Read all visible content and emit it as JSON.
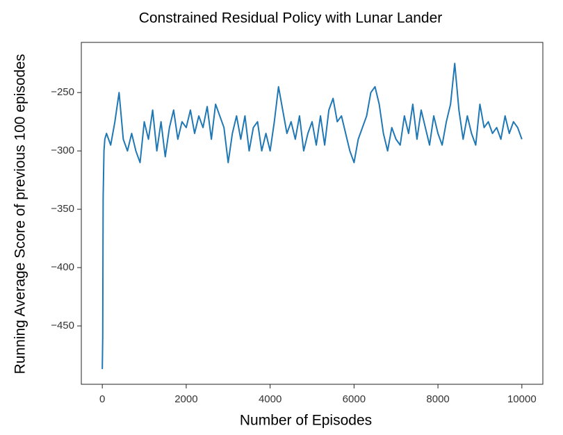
{
  "chart_data": {
    "type": "line",
    "title": "Constrained Residual Policy with Lunar Lander",
    "x_label": "Number of Episodes",
    "y_label": "Running Average Score of previous 100 episodes",
    "xlim": [
      -500,
      10500
    ],
    "ylim": [
      -500,
      -207
    ],
    "xticks": [
      0,
      2000,
      4000,
      6000,
      8000,
      10000
    ],
    "yticks": [
      {
        "value": -450,
        "label": "−450"
      },
      {
        "value": -400,
        "label": "−400"
      },
      {
        "value": -350,
        "label": "−350"
      },
      {
        "value": -300,
        "label": "−300"
      },
      {
        "value": -250,
        "label": "−250"
      }
    ],
    "grid": false,
    "x": [
      0,
      10,
      20,
      40,
      60,
      100,
      200,
      300,
      400,
      500,
      600,
      700,
      800,
      900,
      1000,
      1100,
      1200,
      1300,
      1400,
      1500,
      1600,
      1700,
      1800,
      1900,
      2000,
      2100,
      2200,
      2300,
      2400,
      2500,
      2600,
      2700,
      2800,
      2900,
      3000,
      3100,
      3200,
      3300,
      3400,
      3500,
      3600,
      3700,
      3800,
      3900,
      4000,
      4100,
      4200,
      4300,
      4400,
      4500,
      4600,
      4700,
      4800,
      4900,
      5000,
      5100,
      5200,
      5300,
      5400,
      5500,
      5600,
      5700,
      5800,
      5900,
      6000,
      6100,
      6200,
      6300,
      6400,
      6500,
      6600,
      6700,
      6800,
      6900,
      7000,
      7100,
      7200,
      7300,
      7400,
      7500,
      7600,
      7700,
      7800,
      7900,
      8000,
      8100,
      8200,
      8300,
      8400,
      8500,
      8600,
      8700,
      8800,
      8900,
      9000,
      9100,
      9200,
      9300,
      9400,
      9500,
      9600,
      9700,
      9800,
      9900,
      10000
    ],
    "series": [
      {
        "name": "Running average",
        "color": "#1f77b4",
        "values": [
          -487,
          -460,
          -340,
          -300,
          -290,
          -285,
          -295,
          -275,
          -250,
          -290,
          -300,
          -285,
          -300,
          -310,
          -275,
          -290,
          -265,
          -300,
          -275,
          -305,
          -280,
          -265,
          -290,
          -275,
          -280,
          -265,
          -285,
          -270,
          -280,
          -262,
          -290,
          -260,
          -270,
          -280,
          -310,
          -285,
          -270,
          -290,
          -270,
          -300,
          -280,
          -275,
          -300,
          -285,
          -300,
          -275,
          -245,
          -265,
          -285,
          -275,
          -290,
          -270,
          -300,
          -285,
          -275,
          -295,
          -270,
          -295,
          -265,
          -255,
          -275,
          -270,
          -285,
          -300,
          -310,
          -290,
          -280,
          -270,
          -250,
          -245,
          -260,
          -285,
          -300,
          -280,
          -290,
          -295,
          -270,
          -285,
          -260,
          -290,
          -265,
          -280,
          -295,
          -270,
          -285,
          -295,
          -275,
          -260,
          -225,
          -265,
          -290,
          -270,
          -285,
          -295,
          -260,
          -280,
          -275,
          -285,
          -280,
          -290,
          -270,
          -285,
          -275,
          -280,
          -290
        ]
      }
    ]
  }
}
